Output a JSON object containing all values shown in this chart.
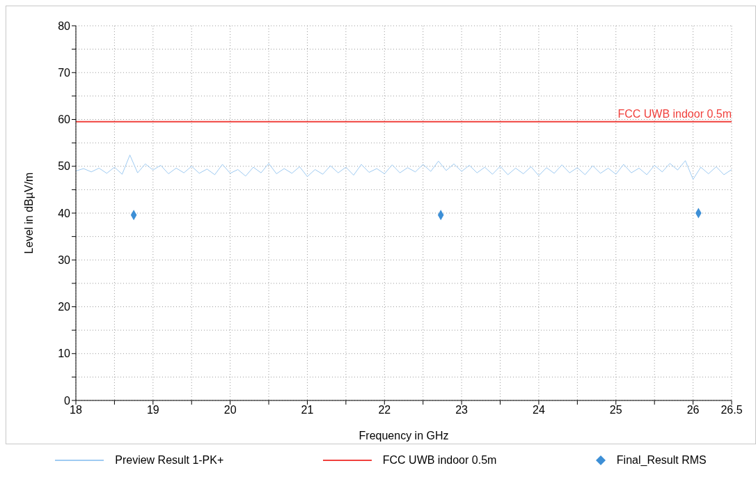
{
  "chart_data": {
    "type": "line",
    "xlabel": "Frequency in GHz",
    "ylabel": "Level in dBµV/m",
    "xlim": [
      18,
      26.5
    ],
    "ylim": [
      0,
      80
    ],
    "xticks": [
      18,
      {
        "value": 18.5,
        "label": null
      },
      19,
      {
        "value": 19.5,
        "label": null
      },
      20,
      {
        "value": 20.5,
        "label": null
      },
      21,
      {
        "value": 21.5,
        "label": null
      },
      22,
      {
        "value": 22.5,
        "label": null
      },
      23,
      {
        "value": 23.5,
        "label": null
      },
      24,
      {
        "value": 24.5,
        "label": null
      },
      25,
      {
        "value": 25.5,
        "label": null
      },
      26,
      26.5
    ],
    "yticks": [
      0,
      {
        "value": 5,
        "label": null
      },
      10,
      {
        "value": 15,
        "label": null
      },
      20,
      {
        "value": 25,
        "label": null
      },
      30,
      {
        "value": 35,
        "label": null
      },
      40,
      {
        "value": 45,
        "label": null
      },
      50,
      {
        "value": 55,
        "label": null
      },
      60,
      {
        "value": 65,
        "label": null
      },
      70,
      {
        "value": 75,
        "label": null
      },
      80
    ],
    "grid": true,
    "legend": "bottom",
    "series": [
      {
        "name": "Preview Result 1-PK+",
        "color": "#9fcbf2",
        "x": [
          18.0,
          18.1,
          18.2,
          18.3,
          18.4,
          18.5,
          18.6,
          18.7,
          18.8,
          18.9,
          19.0,
          19.1,
          19.2,
          19.3,
          19.4,
          19.5,
          19.6,
          19.7,
          19.8,
          19.9,
          20.0,
          20.1,
          20.2,
          20.3,
          20.4,
          20.5,
          20.6,
          20.7,
          20.8,
          20.9,
          21.0,
          21.1,
          21.2,
          21.3,
          21.4,
          21.5,
          21.6,
          21.7,
          21.8,
          21.9,
          22.0,
          22.1,
          22.2,
          22.3,
          22.4,
          22.5,
          22.6,
          22.7,
          22.8,
          22.9,
          23.0,
          23.1,
          23.2,
          23.3,
          23.4,
          23.5,
          23.6,
          23.7,
          23.8,
          23.9,
          24.0,
          24.1,
          24.2,
          24.3,
          24.4,
          24.5,
          24.6,
          24.7,
          24.8,
          24.9,
          25.0,
          25.1,
          25.2,
          25.3,
          25.4,
          25.5,
          25.6,
          25.7,
          25.8,
          25.9,
          26.0,
          26.1,
          26.2,
          26.3,
          26.4,
          26.5
        ],
        "values": [
          49,
          49.5,
          48.8,
          49.6,
          48.5,
          49.8,
          48.3,
          52.4,
          48.6,
          50.5,
          49.2,
          50.2,
          48.4,
          49.6,
          48.6,
          50,
          48.5,
          49.4,
          48.2,
          50.4,
          48.5,
          49.3,
          47.9,
          49.8,
          48.6,
          50.6,
          48.4,
          49.5,
          48.5,
          49.9,
          47.8,
          49.3,
          48.3,
          50.1,
          48.6,
          49.8,
          48.1,
          50.4,
          48.7,
          49.5,
          48.4,
          50.3,
          48.6,
          49.7,
          48.8,
          50.4,
          48.9,
          51.1,
          49.1,
          50.5,
          48.9,
          50.2,
          48.6,
          49.8,
          48.3,
          50,
          48.2,
          49.6,
          48.4,
          49.9,
          48,
          49.7,
          48.5,
          50.3,
          48.6,
          49.7,
          48.2,
          50.1,
          48.5,
          49.6,
          48.3,
          50.4,
          48.6,
          49.6,
          48.2,
          50.2,
          48.8,
          50.6,
          49.2,
          51.2,
          47.2,
          49.8,
          48.4,
          49.9,
          48.2,
          49.3
        ]
      },
      {
        "name": "FCC UWB indoor 0.5m",
        "color": "#f0403c",
        "x": [
          18,
          26.5
        ],
        "values": [
          59.5,
          59.5
        ]
      },
      {
        "name": "Final_Result RMS",
        "type": "scatter",
        "marker": "diamond",
        "color": "#3d8fd6",
        "x": [
          18.75,
          22.73,
          26.07
        ],
        "values": [
          39.6,
          39.6,
          40.0
        ]
      }
    ],
    "annotations": [
      {
        "text": "FCC UWB indoor 0.5m",
        "x": 26.5,
        "y": 59.5
      }
    ]
  }
}
